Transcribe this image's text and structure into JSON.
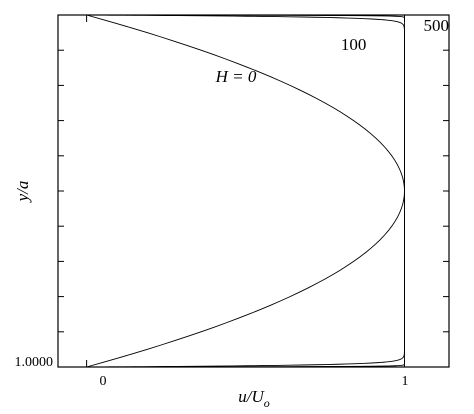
{
  "chart_data": {
    "type": "line",
    "title": "",
    "xlabel": "u/U",
    "xlabel_subscript": "o",
    "ylabel": "y/a",
    "xlim": [
      -0.09,
      1.14
    ],
    "ylim": [
      -1.0,
      1.0
    ],
    "x_ticks": [
      {
        "value": 0,
        "label": "0"
      },
      {
        "value": 1,
        "label": "1"
      }
    ],
    "y_tick_label": "1.0000",
    "grid": false,
    "legend": "none",
    "series": [
      {
        "name": "H = 0",
        "label": "H = 0",
        "hartmann": 0,
        "label_pos": {
          "x": 0.47,
          "y": 0.62
        },
        "x": [
          0,
          0.36,
          0.64,
          0.84,
          0.96,
          1.0,
          0.96,
          0.84,
          0.64,
          0.36,
          0
        ],
        "y": [
          -1.0,
          -0.8,
          -0.6,
          -0.4,
          -0.2,
          0.0,
          0.2,
          0.4,
          0.6,
          0.8,
          1.0
        ]
      },
      {
        "name": "100",
        "label": "100",
        "hartmann": 100,
        "label_pos": {
          "x": 0.84,
          "y": 0.8
        },
        "x": [
          0,
          0.63,
          0.86,
          0.95,
          0.98,
          0.996,
          1.0,
          1.0,
          1.0,
          0.996,
          0.98,
          0.95,
          0.86,
          0.63,
          0
        ],
        "y": [
          -1.0,
          -0.99,
          -0.98,
          -0.97,
          -0.96,
          -0.94,
          -0.9,
          0.0,
          0.9,
          0.94,
          0.96,
          0.97,
          0.98,
          0.99,
          1.0
        ]
      },
      {
        "name": "500",
        "label": "500",
        "hartmann": 500,
        "label_pos": {
          "x": 1.1,
          "y": 0.91
        },
        "x": [
          0,
          0.86,
          0.95,
          0.99,
          0.998,
          1.0,
          1.0,
          1.0,
          0.998,
          0.99,
          0.95,
          0.86,
          0
        ],
        "y": [
          -1.0,
          -0.996,
          -0.99,
          -0.98,
          -0.97,
          -0.95,
          0.0,
          0.95,
          0.97,
          0.98,
          0.99,
          0.996,
          1.0
        ]
      }
    ]
  }
}
